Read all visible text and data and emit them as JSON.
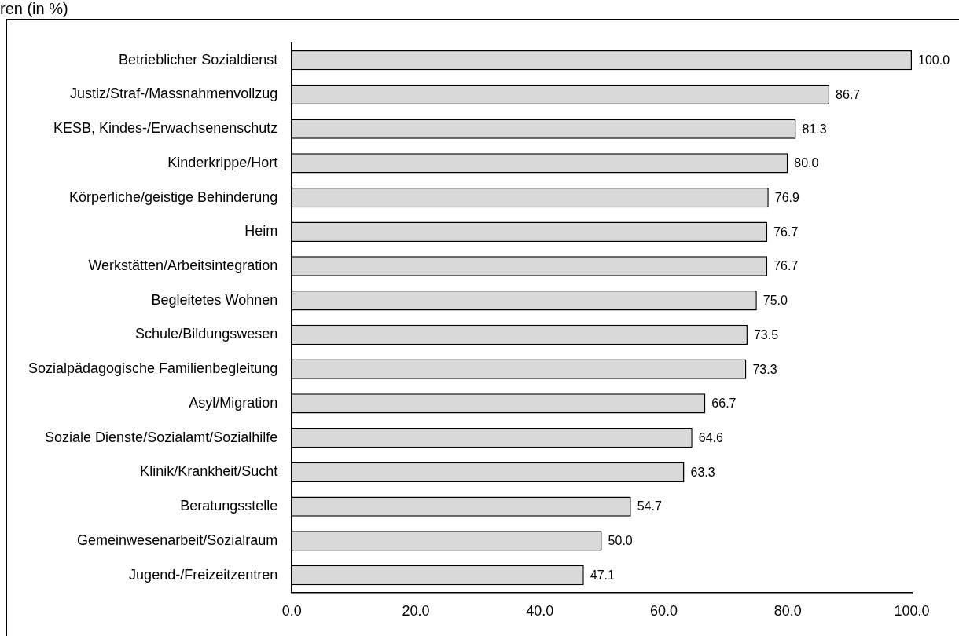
{
  "chart_data": {
    "type": "bar",
    "orientation": "horizontal",
    "title": "ren (in %)",
    "categories": [
      "Betrieblicher Sozialdienst",
      "Justiz/Straf-/Massnahmenvollzug",
      "KESB, Kindes-/Erwachsenenschutz",
      "Kinderkrippe/Hort",
      "Körperliche/geistige Behinderung",
      "Heim",
      "Werkstätten/Arbeitsintegration",
      "Begleitetes Wohnen",
      "Schule/Bildungswesen",
      "Sozialpädagogische Familienbegleitung",
      "Asyl/Migration",
      "Soziale Dienste/Sozialamt/Sozialhilfe",
      "Klinik/Krankheit/Sucht",
      "Beratungsstelle",
      "Gemeinwesenarbeit/Sozialraum",
      "Jugend-/Freizeitzentren"
    ],
    "values": [
      100.0,
      86.7,
      81.3,
      80.0,
      76.9,
      76.7,
      76.7,
      75.0,
      73.5,
      73.3,
      66.7,
      64.6,
      63.3,
      54.7,
      50.0,
      47.1
    ],
    "value_labels": [
      "100.0",
      "86.7",
      "81.3",
      "80.0",
      "76.9",
      "76.7",
      "76.7",
      "75.0",
      "73.5",
      "73.3",
      "66.7",
      "64.6",
      "63.3",
      "54.7",
      "50.0",
      "47.1"
    ],
    "color": "#d9d9d9",
    "xlim": [
      0,
      100
    ],
    "xticks": [
      {
        "value": 0,
        "label": "0.0"
      },
      {
        "value": 20,
        "label": "20.0"
      },
      {
        "value": 40,
        "label": "40.0"
      },
      {
        "value": 60,
        "label": "60.0"
      },
      {
        "value": 80,
        "label": "80.0"
      },
      {
        "value": 100,
        "label": "100.0"
      }
    ],
    "grid": false,
    "legend": false
  }
}
